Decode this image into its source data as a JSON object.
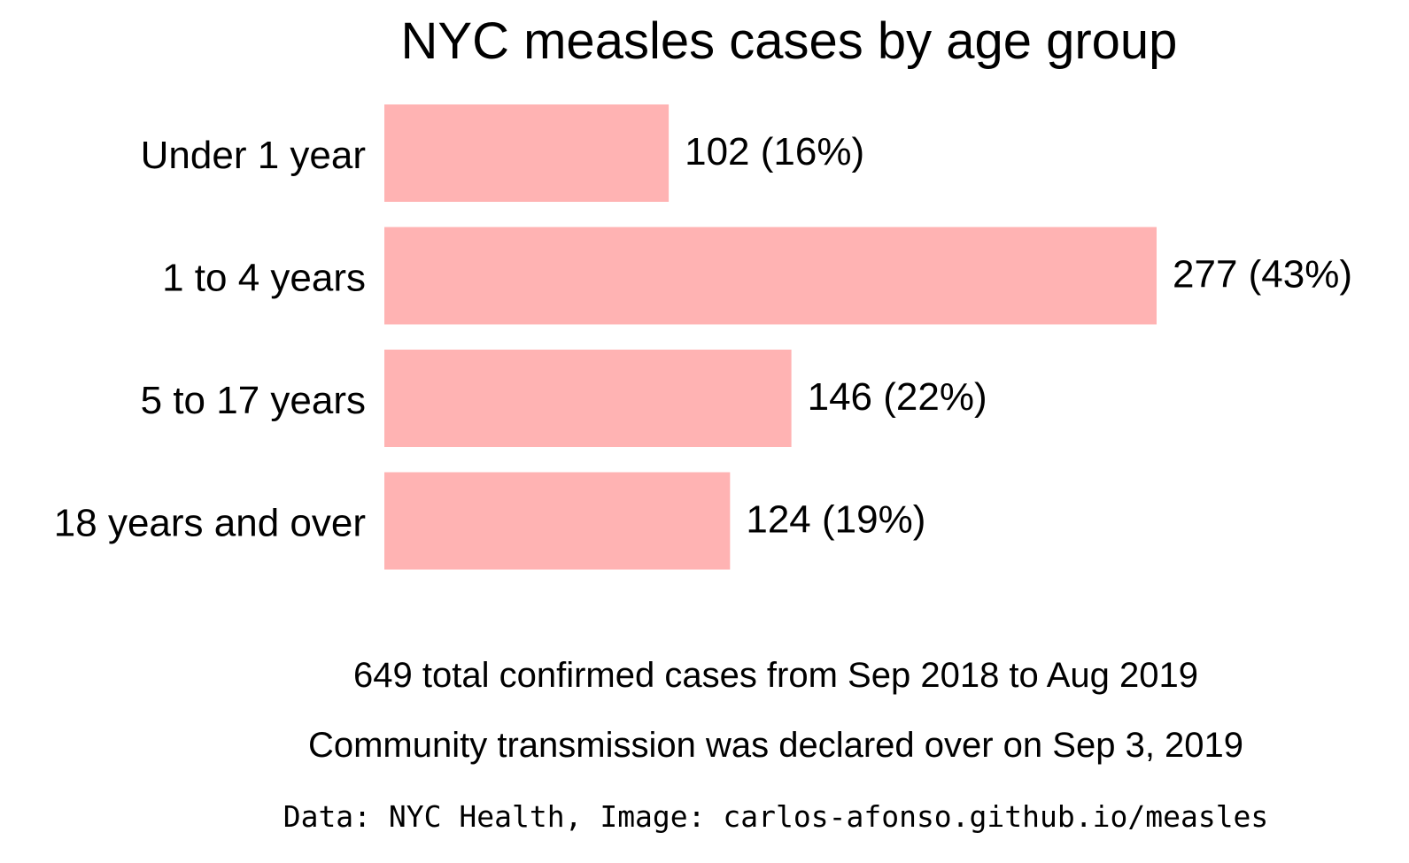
{
  "chart_data": {
    "type": "bar",
    "orientation": "horizontal",
    "title": "NYC measles cases by age group",
    "categories": [
      "Under 1 year",
      "1 to 4 years",
      "5 to 17 years",
      "18 years and over"
    ],
    "values": [
      102,
      277,
      146,
      124
    ],
    "value_labels": [
      "102 (16%)",
      "277 (43%)",
      "146 (22%)",
      "124 (19%)"
    ],
    "xlim": [
      0,
      277
    ],
    "bar_color": "#ffb3b3",
    "grid": false,
    "axes_visible": false,
    "legend": "none",
    "notes": [
      "649 total confirmed cases from Sep 2018 to Aug 2019",
      "Community transmission was declared over on Sep 3, 2019"
    ],
    "credit": "Data: NYC Health, Image: carlos-afonso.github.io/measles"
  }
}
